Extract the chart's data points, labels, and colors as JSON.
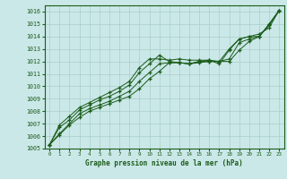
{
  "bg_color": "#cbe8e8",
  "grid_color": "#a8cfc8",
  "line_color": "#1a5c1a",
  "xlabel": "Graphe pression niveau de la mer (hPa)",
  "xlim": [
    -0.5,
    23.5
  ],
  "ylim": [
    1005,
    1016.5
  ],
  "xticks": [
    0,
    1,
    2,
    3,
    4,
    5,
    6,
    7,
    8,
    9,
    10,
    11,
    12,
    13,
    14,
    15,
    16,
    17,
    18,
    19,
    20,
    21,
    22,
    23
  ],
  "yticks": [
    1005,
    1006,
    1007,
    1008,
    1009,
    1010,
    1011,
    1012,
    1013,
    1014,
    1015,
    1016
  ],
  "series": [
    [
      1005.3,
      1006.1,
      1006.9,
      1007.5,
      1008.0,
      1008.3,
      1008.6,
      1008.9,
      1009.2,
      1009.8,
      1010.6,
      1011.2,
      1011.9,
      1011.9,
      1011.8,
      1011.9,
      1012.0,
      1012.0,
      1012.0,
      1012.9,
      1013.6,
      1014.0,
      1014.9,
      1016.1
    ],
    [
      1005.3,
      1006.2,
      1007.0,
      1007.8,
      1008.2,
      1008.5,
      1008.8,
      1009.2,
      1009.6,
      1010.4,
      1011.1,
      1011.8,
      1011.9,
      1011.9,
      1011.8,
      1012.0,
      1012.0,
      1012.0,
      1012.2,
      1013.5,
      1013.8,
      1014.0,
      1015.0,
      1016.1
    ],
    [
      1005.3,
      1006.7,
      1007.3,
      1008.1,
      1008.5,
      1008.9,
      1009.2,
      1009.6,
      1010.1,
      1011.1,
      1011.8,
      1012.5,
      1012.0,
      1011.9,
      1011.8,
      1012.0,
      1012.1,
      1011.8,
      1012.9,
      1013.8,
      1014.0,
      1014.2,
      1014.7,
      1016.1
    ],
    [
      1005.3,
      1006.9,
      1007.6,
      1008.3,
      1008.7,
      1009.1,
      1009.5,
      1009.9,
      1010.4,
      1011.5,
      1012.2,
      1012.2,
      1012.1,
      1012.2,
      1012.1,
      1012.1,
      1012.1,
      1012.0,
      1013.0,
      1013.8,
      1014.0,
      1014.0,
      1015.0,
      1016.1
    ]
  ]
}
